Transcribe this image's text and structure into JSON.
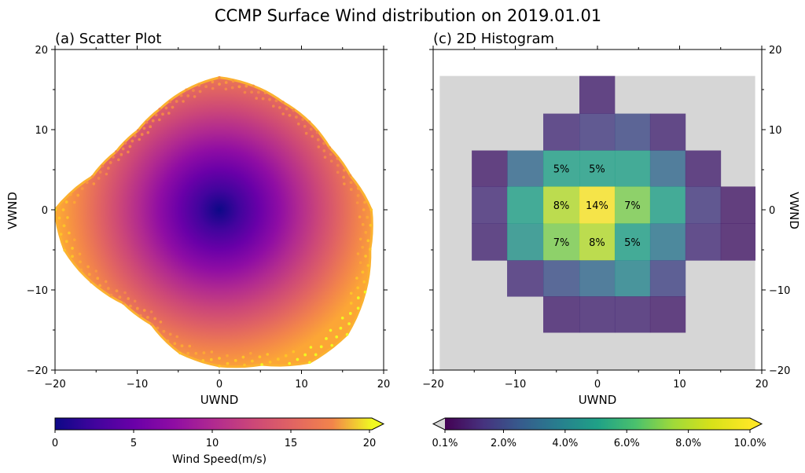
{
  "title": "CCMP Surface Wind distribution on 2019.01.01",
  "chart_data": [
    {
      "type": "scatter",
      "title": "(a) Scatter Plot",
      "xlabel": "UWND",
      "ylabel": "VWND",
      "xlim": [
        -20,
        20
      ],
      "ylim": [
        -20,
        20
      ],
      "xticks": [
        "−20",
        "−10",
        "0",
        "10",
        "20"
      ],
      "yticks": [
        "−20",
        "−10",
        "0",
        "10",
        "20"
      ],
      "color_by": "wind speed (sqrt(UWND²+VWND²))",
      "colormap": "plasma",
      "grid": false,
      "cloud_outline_radius_by_angle_deg": {
        "0": 18.5,
        "15": 16.5,
        "30": 15.5,
        "45": 15.5,
        "60": 15.5,
        "75": 16.0,
        "90": 16.5,
        "105": 15.5,
        "120": 14.5,
        "135": 14.0,
        "150": 14.5,
        "165": 16.0,
        "180": 20.0,
        "195": 19.5,
        "210": 18.0,
        "225": 16.5,
        "240": 16.5,
        "255": 18.5,
        "270": 19.5,
        "285": 20.0,
        "300": 22.0,
        "315": 22.0,
        "330": 20.5,
        "345": 19.0
      },
      "colorbar": {
        "label": "Wind Speed(m/s)",
        "ticks": [
          "0",
          "5",
          "10",
          "15",
          "20"
        ],
        "range": [
          0,
          20
        ],
        "extend": "max"
      }
    },
    {
      "type": "heatmap",
      "title": "(c) 2D Histogram",
      "xlabel": "UWND",
      "ylabel": "VWND",
      "xlim": [
        -20,
        20
      ],
      "ylim": [
        -20,
        20
      ],
      "xticks": [
        "−20",
        "−10",
        "0",
        "10",
        "20"
      ],
      "yticks": [
        "−20",
        "−10",
        "0",
        "10",
        "20"
      ],
      "background_color": "#d6d6d6",
      "background_extent": {
        "x": [
          -19.2,
          19.2
        ],
        "y": [
          -20,
          16.7
        ]
      },
      "bin_edges_x": [
        -15.3,
        -11.0,
        -6.6,
        -2.2,
        2.1,
        6.4,
        10.7,
        15.0,
        19.2
      ],
      "bin_edges_y": [
        -15.3,
        -10.8,
        -6.3,
        -1.7,
        2.9,
        7.4,
        12.0,
        16.7
      ],
      "cells": [
        {
          "col": 3,
          "row": 6,
          "value": 0.9
        },
        {
          "col": 2,
          "row": 5,
          "value": 1.2
        },
        {
          "col": 3,
          "row": 5,
          "value": 1.6
        },
        {
          "col": 4,
          "row": 5,
          "value": 2.0
        },
        {
          "col": 5,
          "row": 5,
          "value": 1.0
        },
        {
          "col": 1,
          "row": 4,
          "value": 3.0
        },
        {
          "col": 2,
          "row": 4,
          "value": 5.0,
          "label": "5%"
        },
        {
          "col": 3,
          "row": 4,
          "value": 5.0,
          "label": "5%"
        },
        {
          "col": 4,
          "row": 4,
          "value": 5.0
        },
        {
          "col": 5,
          "row": 4,
          "value": 3.0
        },
        {
          "col": 6,
          "row": 4,
          "value": 0.9
        },
        {
          "col": 0,
          "row": 4,
          "value": 0.8
        },
        {
          "col": 0,
          "row": 3,
          "value": 1.2
        },
        {
          "col": 1,
          "row": 3,
          "value": 5.0
        },
        {
          "col": 2,
          "row": 3,
          "value": 8.0,
          "label": "8%"
        },
        {
          "col": 3,
          "row": 3,
          "value": 14.0,
          "label": "14%"
        },
        {
          "col": 4,
          "row": 3,
          "value": 7.0,
          "label": "7%"
        },
        {
          "col": 5,
          "row": 3,
          "value": 5.0
        },
        {
          "col": 6,
          "row": 3,
          "value": 1.5
        },
        {
          "col": 7,
          "row": 3,
          "value": 0.7
        },
        {
          "col": 0,
          "row": 2,
          "value": 1.0
        },
        {
          "col": 1,
          "row": 2,
          "value": 4.5
        },
        {
          "col": 2,
          "row": 2,
          "value": 7.0,
          "label": "7%"
        },
        {
          "col": 3,
          "row": 2,
          "value": 8.0,
          "label": "8%"
        },
        {
          "col": 4,
          "row": 2,
          "value": 5.0,
          "label": "5%"
        },
        {
          "col": 5,
          "row": 2,
          "value": 3.5
        },
        {
          "col": 6,
          "row": 2,
          "value": 1.2
        },
        {
          "col": 7,
          "row": 2,
          "value": 0.7
        },
        {
          "col": 1,
          "row": 1,
          "value": 1.2
        },
        {
          "col": 2,
          "row": 1,
          "value": 2.2
        },
        {
          "col": 3,
          "row": 1,
          "value": 3.0
        },
        {
          "col": 4,
          "row": 1,
          "value": 4.0
        },
        {
          "col": 5,
          "row": 1,
          "value": 1.8
        },
        {
          "col": 2,
          "row": 0,
          "value": 0.9
        },
        {
          "col": 3,
          "row": 0,
          "value": 1.0
        },
        {
          "col": 4,
          "row": 0,
          "value": 1.0
        },
        {
          "col": 5,
          "row": 0,
          "value": 0.8
        }
      ],
      "colormap": "viridis",
      "colorbar": {
        "ticks": [
          "0.1%",
          "2.0%",
          "4.0%",
          "6.0%",
          "8.0%",
          "10.0%"
        ],
        "range": [
          0.1,
          10.0
        ],
        "extend": "both",
        "under_color": "#d6d6d6"
      }
    }
  ]
}
